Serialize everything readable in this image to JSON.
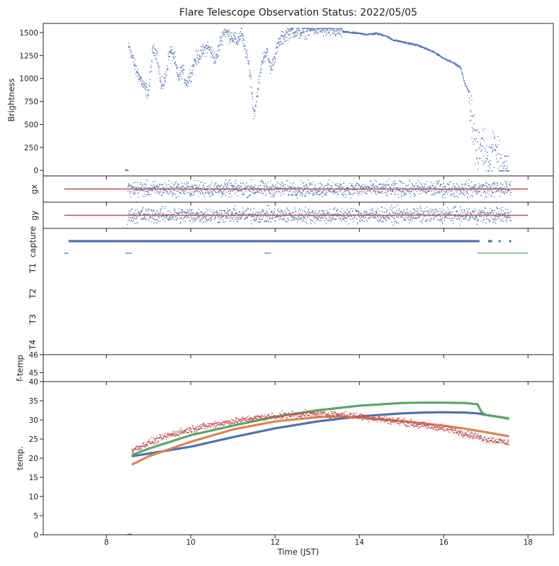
{
  "chart_data": {
    "type": "scatter",
    "title": "Flare Telescope Observation Status: 2022/05/05",
    "xlabel": "Time (JST)",
    "xlim": [
      6.5,
      18.6
    ],
    "x_ticks": [
      8,
      10,
      12,
      14,
      16,
      18
    ],
    "x_tick_labels": [
      "8",
      "10",
      "12",
      "14",
      "16",
      "18"
    ],
    "colors": {
      "blue": "#4c72b0",
      "orange": "#dd8452",
      "green": "#55a868",
      "red": "#c44e52"
    },
    "panels": [
      {
        "id": "brightness",
        "ylabel": "Brightness",
        "ylim": [
          -60,
          1600
        ],
        "y_ticks": [
          0,
          250,
          500,
          750,
          1000,
          1250,
          1500
        ],
        "y_tick_labels": [
          "0",
          "250",
          "500",
          "750",
          "1000",
          "1250",
          "1500"
        ],
        "series": [
          {
            "name": "Brightness",
            "style": "scatter",
            "color": "#4c72b0",
            "x": [
              8.45,
              8.5,
              8.55,
              8.6,
              8.7,
              8.8,
              8.9,
              9.0,
              9.1,
              9.2,
              9.3,
              9.4,
              9.5,
              9.6,
              9.7,
              9.8,
              9.9,
              10.0,
              10.1,
              10.2,
              10.3,
              10.4,
              10.5,
              10.6,
              10.7,
              10.8,
              10.9,
              11.0,
              11.1,
              11.2,
              11.3,
              11.4,
              11.5,
              11.6,
              11.7,
              11.8,
              11.9,
              12.0,
              12.1,
              12.2,
              12.3,
              12.4,
              12.6,
              12.8,
              13.0,
              13.2,
              13.4,
              13.6,
              13.8,
              14.0,
              14.2,
              14.4,
              14.6,
              14.8,
              15.0,
              15.2,
              15.4,
              15.6,
              15.8,
              16.0,
              16.2,
              16.4,
              16.5,
              16.6,
              16.7,
              16.8,
              16.9,
              17.0,
              17.1,
              17.2,
              17.3,
              17.4,
              17.5
            ],
            "y": [
              0,
              1320,
              1350,
              1250,
              1100,
              1000,
              900,
              850,
              1300,
              1280,
              900,
              1000,
              1300,
              1250,
              1000,
              1100,
              950,
              1050,
              1200,
              1250,
              1300,
              1350,
              1280,
              1200,
              1400,
              1520,
              1480,
              1450,
              1400,
              1500,
              1300,
              1100,
              600,
              900,
              1200,
              1300,
              1100,
              1250,
              1400,
              1450,
              1500,
              1520,
              1500,
              1530,
              1540,
              1530,
              1520,
              1510,
              1500,
              1490,
              1480,
              1490,
              1470,
              1420,
              1400,
              1380,
              1360,
              1320,
              1280,
              1220,
              1180,
              1120,
              950,
              850,
              500,
              150,
              300,
              200,
              100,
              350,
              150,
              0,
              0
            ]
          }
        ]
      },
      {
        "id": "gx",
        "ylabel": "gx",
        "ylim": [
          -1,
          1
        ],
        "series": [
          {
            "name": "gx reference",
            "style": "line",
            "color": "#c44e52",
            "x": [
              7.0,
              18.0
            ],
            "y": [
              0,
              0
            ]
          },
          {
            "name": "gx",
            "style": "scatter",
            "color": "#4c72b0",
            "x_range": [
              8.5,
              17.6
            ],
            "y_spread": 0.85
          }
        ]
      },
      {
        "id": "gy",
        "ylabel": "gy",
        "ylim": [
          -1,
          1
        ],
        "series": [
          {
            "name": "gy reference",
            "style": "line",
            "color": "#c44e52",
            "x": [
              7.0,
              18.0
            ],
            "y": [
              0,
              0
            ]
          },
          {
            "name": "gy",
            "style": "scatter",
            "color": "#4c72b0",
            "x_range": [
              8.5,
              17.6
            ],
            "y_spread": 0.85
          }
        ]
      },
      {
        "id": "status",
        "ylabel_rows": [
          "capture",
          "T1",
          "T2",
          "T3",
          "T4"
        ],
        "segments": [
          {
            "row": "capture",
            "color": "#4c72b0",
            "x": [
              7.1,
              16.85
            ]
          },
          {
            "row": "capture",
            "color": "#4c72b0",
            "x": [
              17.05,
              17.15
            ]
          },
          {
            "row": "capture",
            "color": "#4c72b0",
            "x": [
              17.3,
              17.35
            ]
          },
          {
            "row": "capture",
            "color": "#4c72b0",
            "x": [
              17.55,
              17.6
            ]
          },
          {
            "row": "T1",
            "color": "#4c72b0",
            "x": [
              7.0,
              7.1
            ]
          },
          {
            "row": "T1",
            "color": "#4c72b0",
            "x": [
              8.45,
              8.6
            ]
          },
          {
            "row": "T1",
            "color": "#4c72b0",
            "x": [
              11.75,
              11.9
            ]
          },
          {
            "row": "T1",
            "color": "#55a868",
            "x": [
              16.8,
              18.0
            ]
          }
        ]
      },
      {
        "id": "ftemp",
        "ylabel": "f-temp",
        "ylim": [
          44.5,
          46.0
        ],
        "y_ticks": [
          45,
          46
        ],
        "y_tick_labels": [
          "45",
          "46"
        ]
      },
      {
        "id": "temp",
        "ylabel": "temp.",
        "ylim": [
          0,
          40
        ],
        "y_ticks": [
          0,
          5,
          10,
          15,
          20,
          25,
          30,
          35,
          40
        ],
        "y_tick_labels": [
          "0",
          "5",
          "10",
          "15",
          "20",
          "25",
          "30",
          "35",
          "40"
        ],
        "series": [
          {
            "name": "blue",
            "style": "line",
            "color": "#4c72b0",
            "x": [
              8.6,
              9.0,
              10.0,
              11.0,
              12.0,
              13.0,
              14.0,
              15.0,
              15.5,
              16.0,
              16.5,
              16.8,
              17.0,
              17.3,
              17.55
            ],
            "y": [
              20.5,
              21.2,
              23.0,
              25.5,
              27.8,
              29.6,
              30.9,
              31.7,
              31.9,
              32.0,
              31.9,
              31.7,
              31.3,
              30.8,
              30.3
            ]
          },
          {
            "name": "green",
            "style": "line",
            "color": "#55a868",
            "x": [
              8.6,
              9.0,
              10.0,
              11.0,
              12.0,
              13.0,
              14.0,
              15.0,
              15.5,
              16.0,
              16.5,
              16.8,
              16.9,
              17.0,
              17.3,
              17.55
            ],
            "y": [
              20.8,
              22.5,
              26.0,
              28.5,
              30.8,
              32.5,
              33.7,
              34.4,
              34.5,
              34.5,
              34.4,
              34.1,
              32.0,
              31.3,
              30.8,
              30.4
            ]
          },
          {
            "name": "orange",
            "style": "line",
            "color": "#dd8452",
            "x": [
              8.6,
              9.0,
              10.0,
              11.0,
              12.0,
              13.0,
              13.5,
              14.0,
              15.0,
              16.0,
              16.5,
              17.0,
              17.55
            ],
            "y": [
              18.3,
              20.5,
              24.3,
              27.5,
              29.6,
              30.7,
              30.9,
              30.6,
              29.7,
              28.5,
              27.7,
              26.8,
              25.7
            ]
          },
          {
            "name": "red",
            "style": "scatter",
            "color": "#c44e52",
            "x": [
              8.6,
              9.0,
              9.5,
              10.0,
              10.5,
              11.0,
              11.5,
              12.0,
              12.5,
              13.0,
              13.5,
              14.0,
              14.5,
              15.0,
              15.5,
              16.0,
              16.5,
              17.0,
              17.55
            ],
            "y": [
              22.0,
              24.0,
              26.0,
              27.5,
              28.7,
              29.6,
              30.4,
              31.0,
              31.4,
              31.6,
              31.4,
              30.9,
              30.2,
              29.5,
              28.6,
              27.8,
              26.5,
              25.0,
              24.0
            ]
          }
        ]
      }
    ]
  }
}
